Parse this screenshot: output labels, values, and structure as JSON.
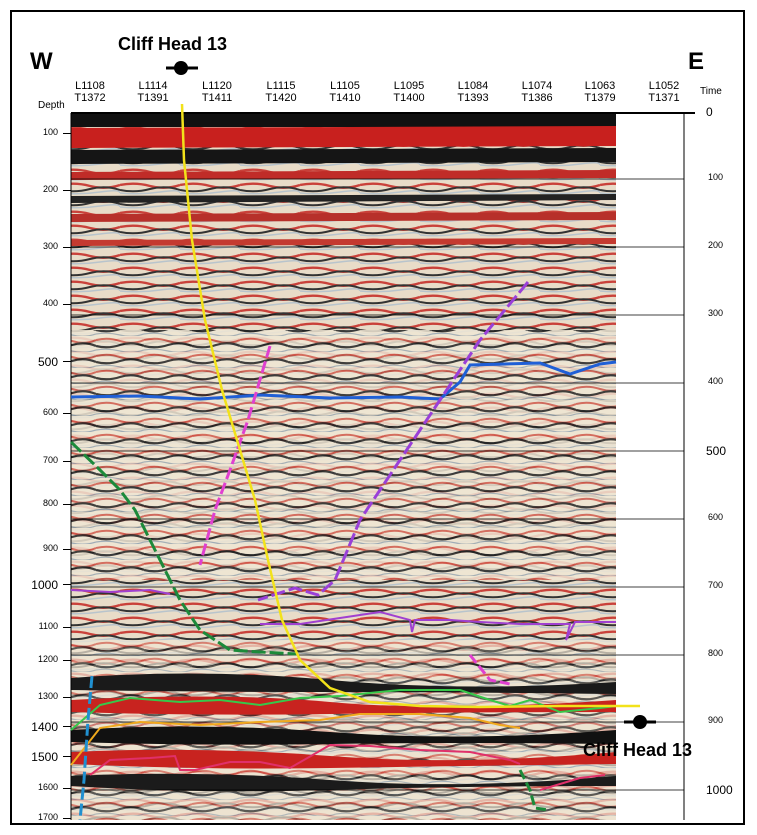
{
  "directions": {
    "west": "W",
    "east": "E"
  },
  "well": {
    "top_label": "Cliff Head 13",
    "bottom_label": "Cliff Head 13"
  },
  "axis": {
    "depth_title": "Depth",
    "time_title": "Time"
  },
  "columns": [
    {
      "line": "L1108",
      "trace": "T1372"
    },
    {
      "line": "L1114",
      "trace": "T1391"
    },
    {
      "line": "L1120",
      "trace": "T1411"
    },
    {
      "line": "L1115",
      "trace": "T1420"
    },
    {
      "line": "L1105",
      "trace": "T1410"
    },
    {
      "line": "L1095",
      "trace": "T1400"
    },
    {
      "line": "L1084",
      "trace": "T1393"
    },
    {
      "line": "L1074",
      "trace": "T1386"
    },
    {
      "line": "L1063",
      "trace": "T1379"
    },
    {
      "line": "L1052",
      "trace": "T1371"
    }
  ],
  "depth_ticks": [
    "100",
    "200",
    "300",
    "400",
    "500",
    "600",
    "700",
    "800",
    "900",
    "1000",
    "1100",
    "1200",
    "1300",
    "1400",
    "1500",
    "1600",
    "1700"
  ],
  "time_ticks": [
    "0",
    "100",
    "200",
    "300",
    "400",
    "500",
    "600",
    "700",
    "800",
    "900",
    "1000"
  ],
  "colors": {
    "well_path": "#f2e21a",
    "horizon_blue": "#1f5fd6",
    "horizon_green": "#37c84a",
    "horizon_orange": "#f0a91c",
    "horizon_pink": "#e0306a",
    "horizon_purple": "#a040d0",
    "fault_green": "#1c8a3a",
    "fault_magenta": "#e040d0",
    "fault_purple": "#9a40d8",
    "fault_cyan": "#2090d0"
  }
}
